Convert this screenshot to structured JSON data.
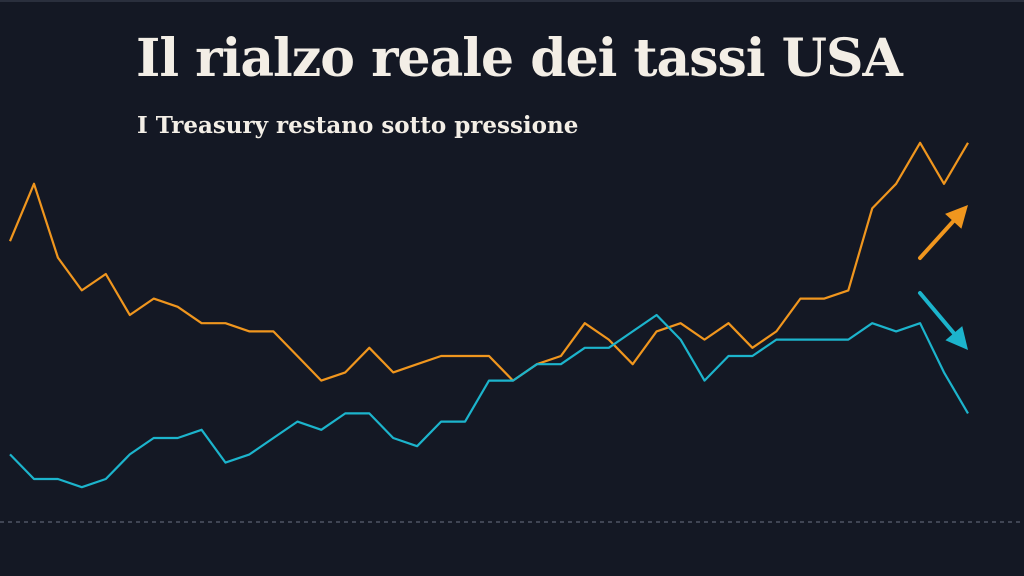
{
  "header": {
    "title": "Il rialzo reale dei tassi USA",
    "subtitle": "I Treasury restano sotto pressione"
  },
  "chart_data": {
    "type": "line",
    "title": "Il rialzo reale dei tassi USA",
    "subtitle": "I Treasury restano sotto pressione",
    "xlabel": "",
    "ylabel": "",
    "grid": false,
    "legend": "none",
    "ylim": [
      0,
      100
    ],
    "baseline": 0,
    "x": [
      0,
      1,
      2,
      3,
      4,
      5,
      6,
      7,
      8,
      9,
      10,
      11,
      12,
      13,
      14,
      15,
      16,
      17,
      18,
      19,
      20,
      21,
      22,
      23,
      24,
      25,
      26,
      27,
      28,
      29,
      30,
      31,
      32,
      33,
      34,
      35,
      36,
      37,
      38,
      39,
      40
    ],
    "series": [
      {
        "color": "#f0961e",
        "trend": "up",
        "values": [
          68,
          82,
          64,
          56,
          60,
          50,
          54,
          52,
          48,
          48,
          46,
          46,
          40,
          34,
          36,
          42,
          36,
          38,
          40,
          40,
          40,
          34,
          38,
          40,
          48,
          44,
          38,
          46,
          48,
          44,
          48,
          42,
          46,
          54,
          54,
          56,
          76,
          82,
          92,
          82,
          92
        ]
      },
      {
        "color": "#1cb4cc",
        "trend": "down",
        "values": [
          16,
          10,
          10,
          8,
          10,
          16,
          20,
          20,
          22,
          14,
          16,
          20,
          24,
          22,
          26,
          26,
          20,
          18,
          24,
          24,
          34,
          34,
          38,
          38,
          42,
          42,
          46,
          50,
          44,
          34,
          40,
          40,
          44,
          44,
          44,
          44,
          48,
          46,
          48,
          36,
          26
        ]
      }
    ]
  }
}
